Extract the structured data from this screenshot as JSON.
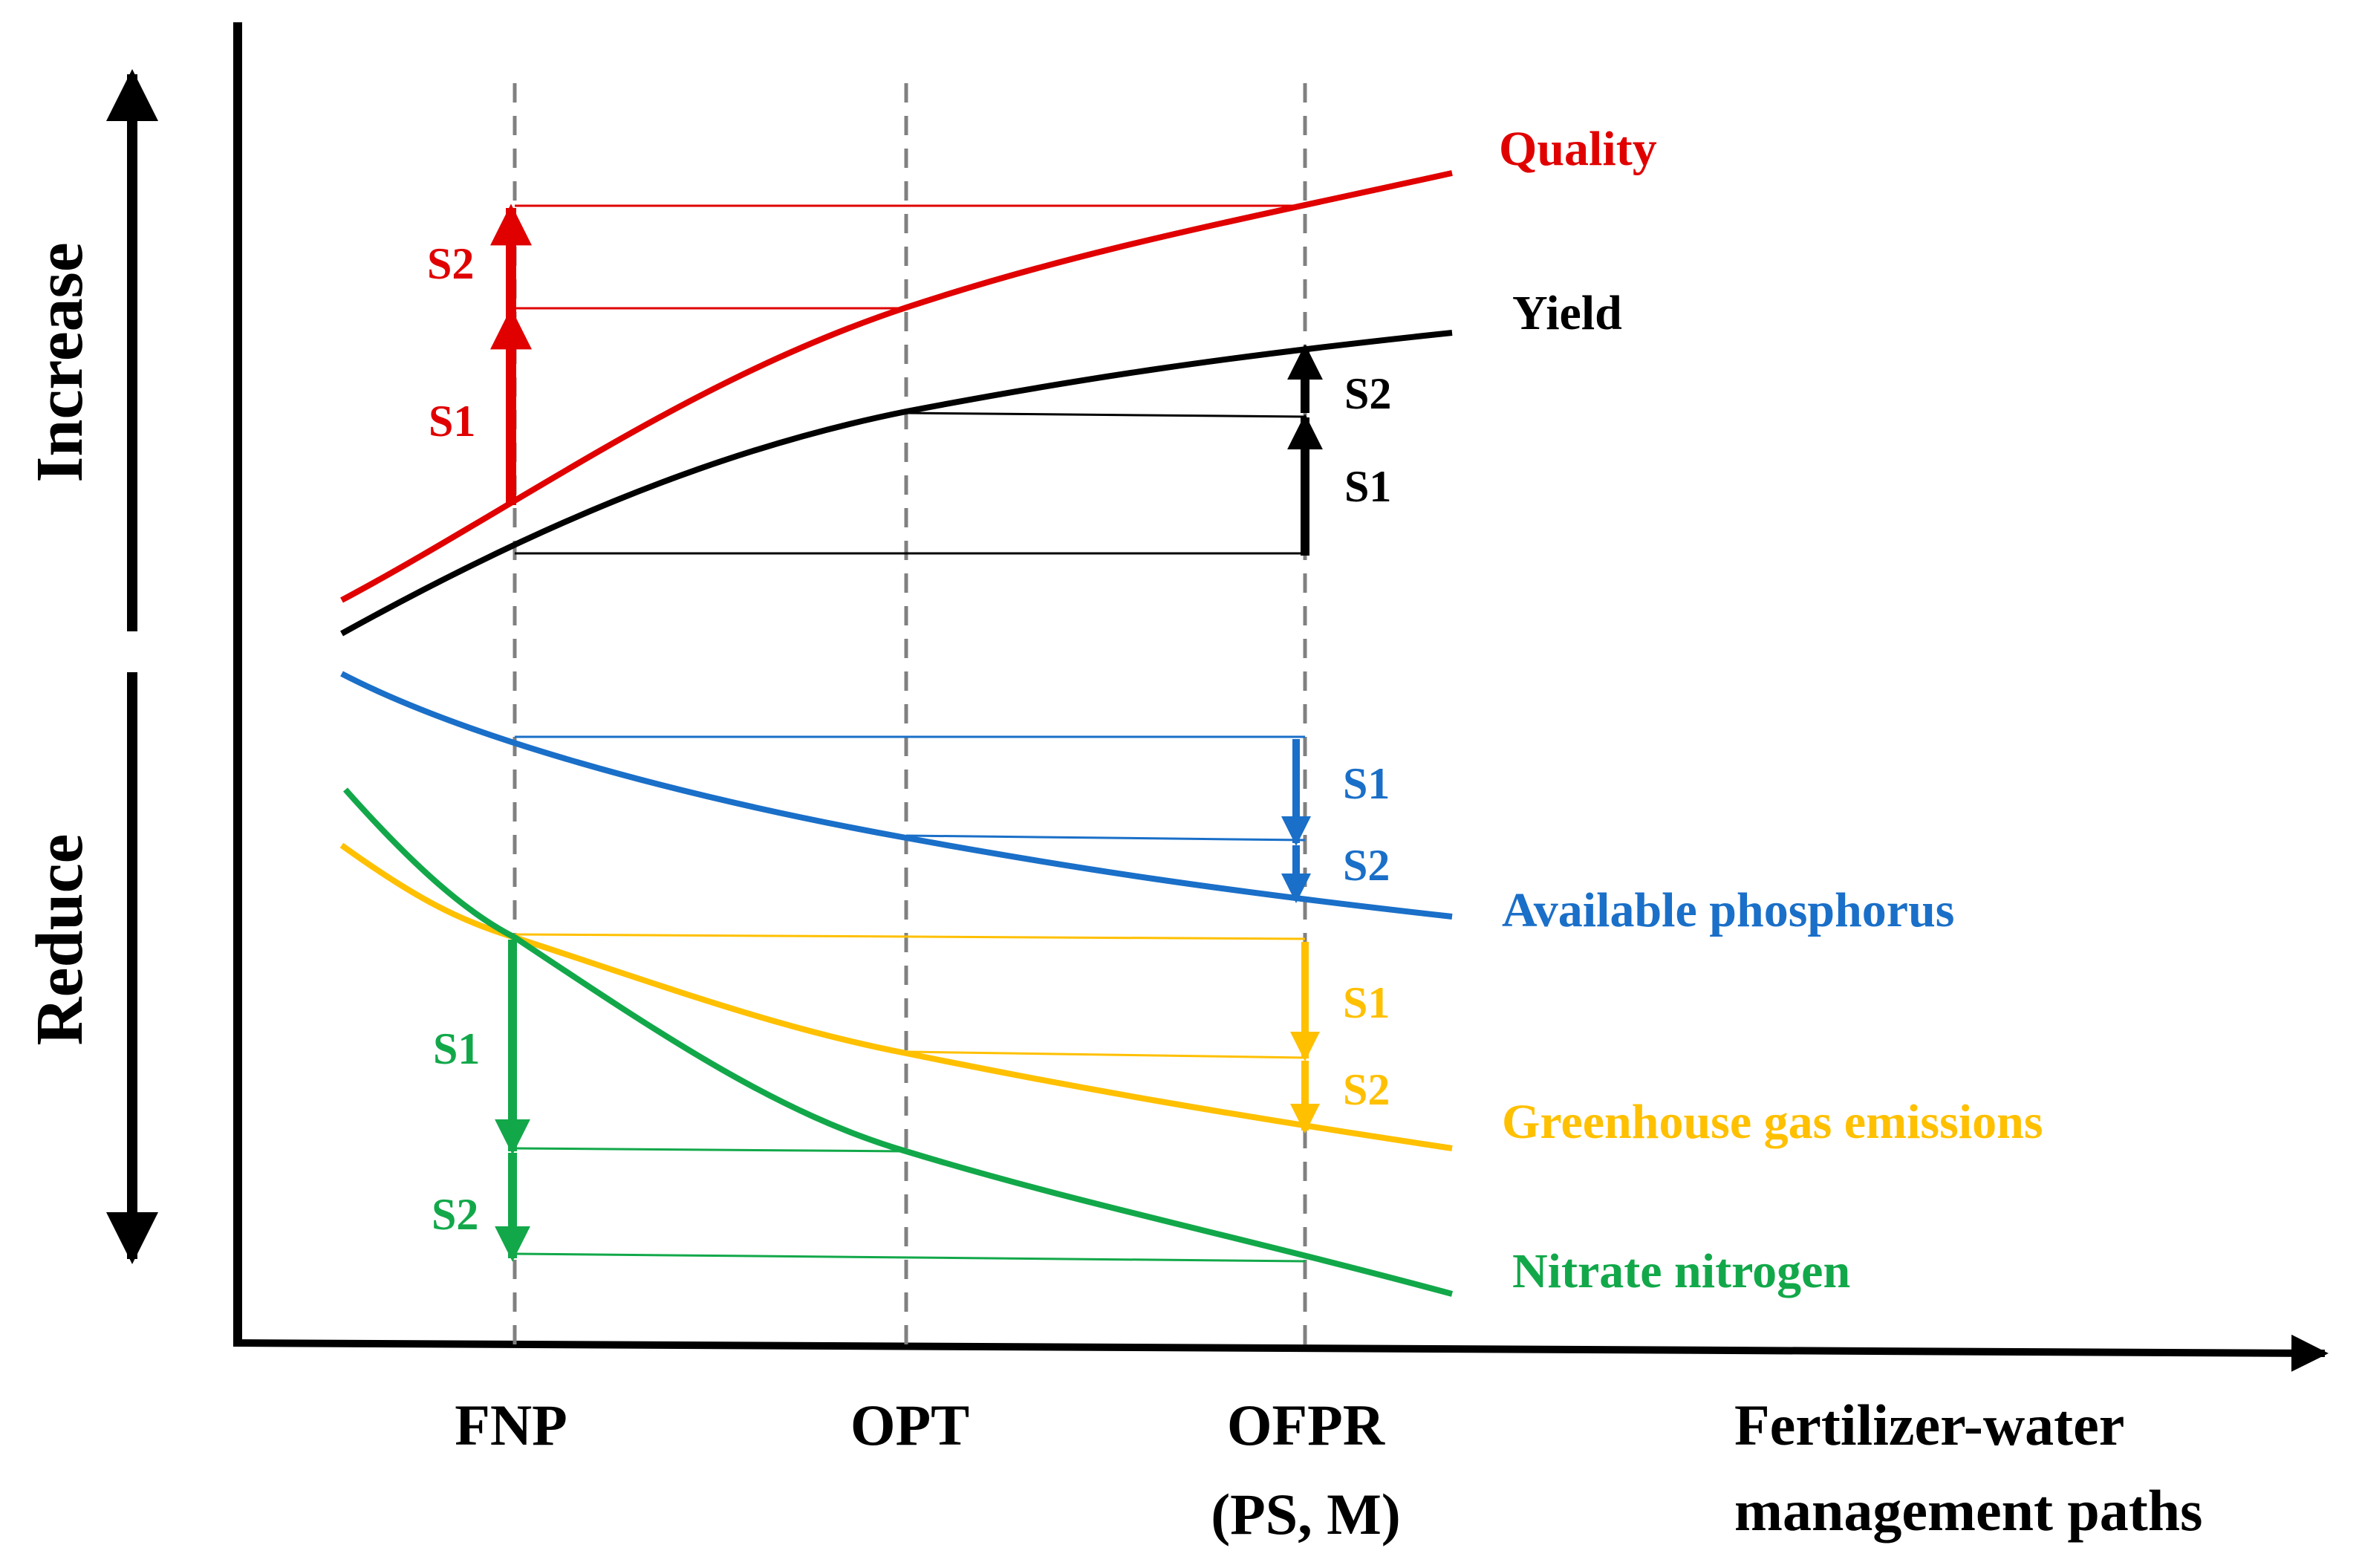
{
  "title": "",
  "colors": {
    "quality": "#e00000",
    "yield": "#000000",
    "phosphorus": "#1a6fc8",
    "ghg": "#ffc000",
    "nitrate": "#12a84a",
    "guide": "#808080"
  },
  "side_labels": {
    "increase": "Increase",
    "reduce": "Reduce"
  },
  "x_axis": {
    "label_line1": "Fertilizer-water",
    "label_line2": "management paths",
    "ticks": [
      {
        "id": "fnp",
        "label": "FNP",
        "sub": ""
      },
      {
        "id": "opt",
        "label": "OPT",
        "sub": ""
      },
      {
        "id": "ofpr",
        "label": "OFPR",
        "sub": "(PS, M)"
      }
    ]
  },
  "series": {
    "quality": {
      "label": "Quality"
    },
    "yield": {
      "label": "Yield"
    },
    "phosphorus": {
      "label": "Available phosphorus"
    },
    "ghg": {
      "label": "Greenhouse gas emissions"
    },
    "nitrate": {
      "label": "Nitrate nitrogen"
    }
  },
  "steps": {
    "quality": {
      "s1": "S1",
      "s2": "S2"
    },
    "yield": {
      "s1": "S1",
      "s2": "S2"
    },
    "phosphorus": {
      "s1": "S1",
      "s2": "S2"
    },
    "ghg": {
      "s1": "S1",
      "s2": "S2"
    },
    "nitrate": {
      "s1": "S1",
      "s2": "S2"
    }
  }
}
